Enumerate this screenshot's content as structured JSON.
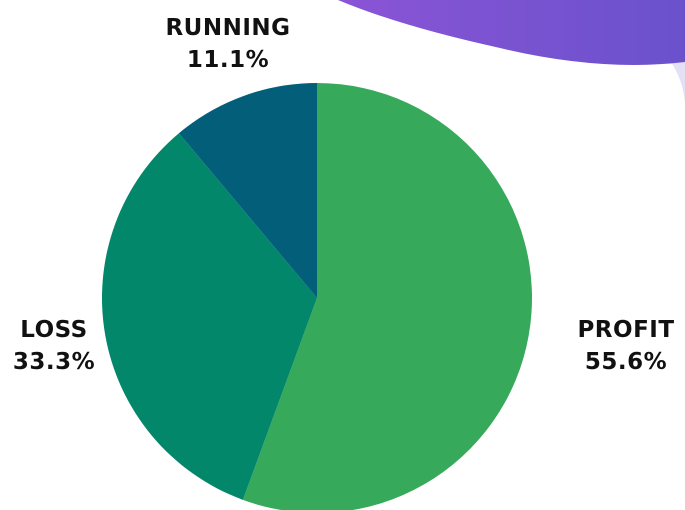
{
  "chart_data": {
    "type": "pie",
    "title": "",
    "slices": [
      {
        "label": "PROFIT",
        "value": 55.6,
        "percent_label": "55.6%",
        "color": "#37A95B"
      },
      {
        "label": "LOSS",
        "value": 33.3,
        "percent_label": "33.3%",
        "color": "#02876A"
      },
      {
        "label": "RUNNING",
        "value": 11.1,
        "percent_label": "11.1%",
        "color": "#035E79"
      }
    ],
    "start_angle_deg": 0,
    "direction": "clockwise"
  },
  "colors": {
    "background": "#FFFFFF",
    "decor_blob_left": "#8A54D6",
    "decor_blob_right": "#6A52CC",
    "decor_tint": "#E4E1F7"
  }
}
